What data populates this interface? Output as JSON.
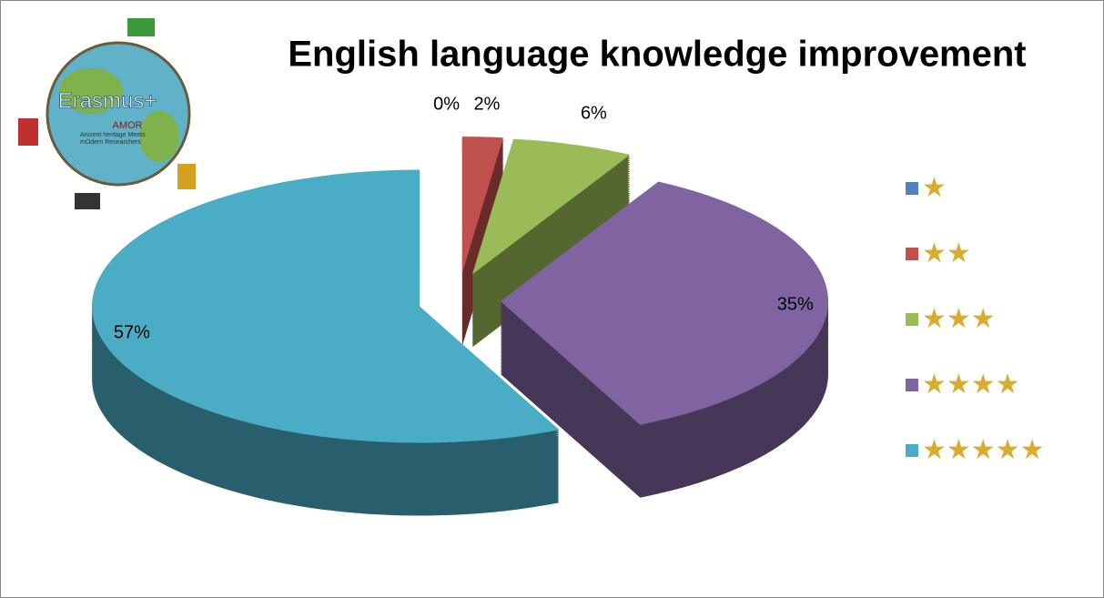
{
  "chart_data": {
    "type": "pie3d",
    "title": "English language knowledge improvement",
    "categories": [
      "★",
      "★★",
      "★★★",
      "★★★★",
      "★★★★★"
    ],
    "values": [
      0,
      2,
      6,
      35,
      57
    ],
    "value_labels": [
      "0%",
      "2%",
      "6%",
      "35%",
      "57%"
    ],
    "colors": [
      "#4f81bd",
      "#c0504d",
      "#9bbb59",
      "#8064a2",
      "#4bacc6"
    ],
    "legend": "right"
  },
  "logo": {
    "title": "Erasmus+",
    "subtitle": "AMOR",
    "text": "Ancient heritage Meets mOdern Researchers"
  }
}
